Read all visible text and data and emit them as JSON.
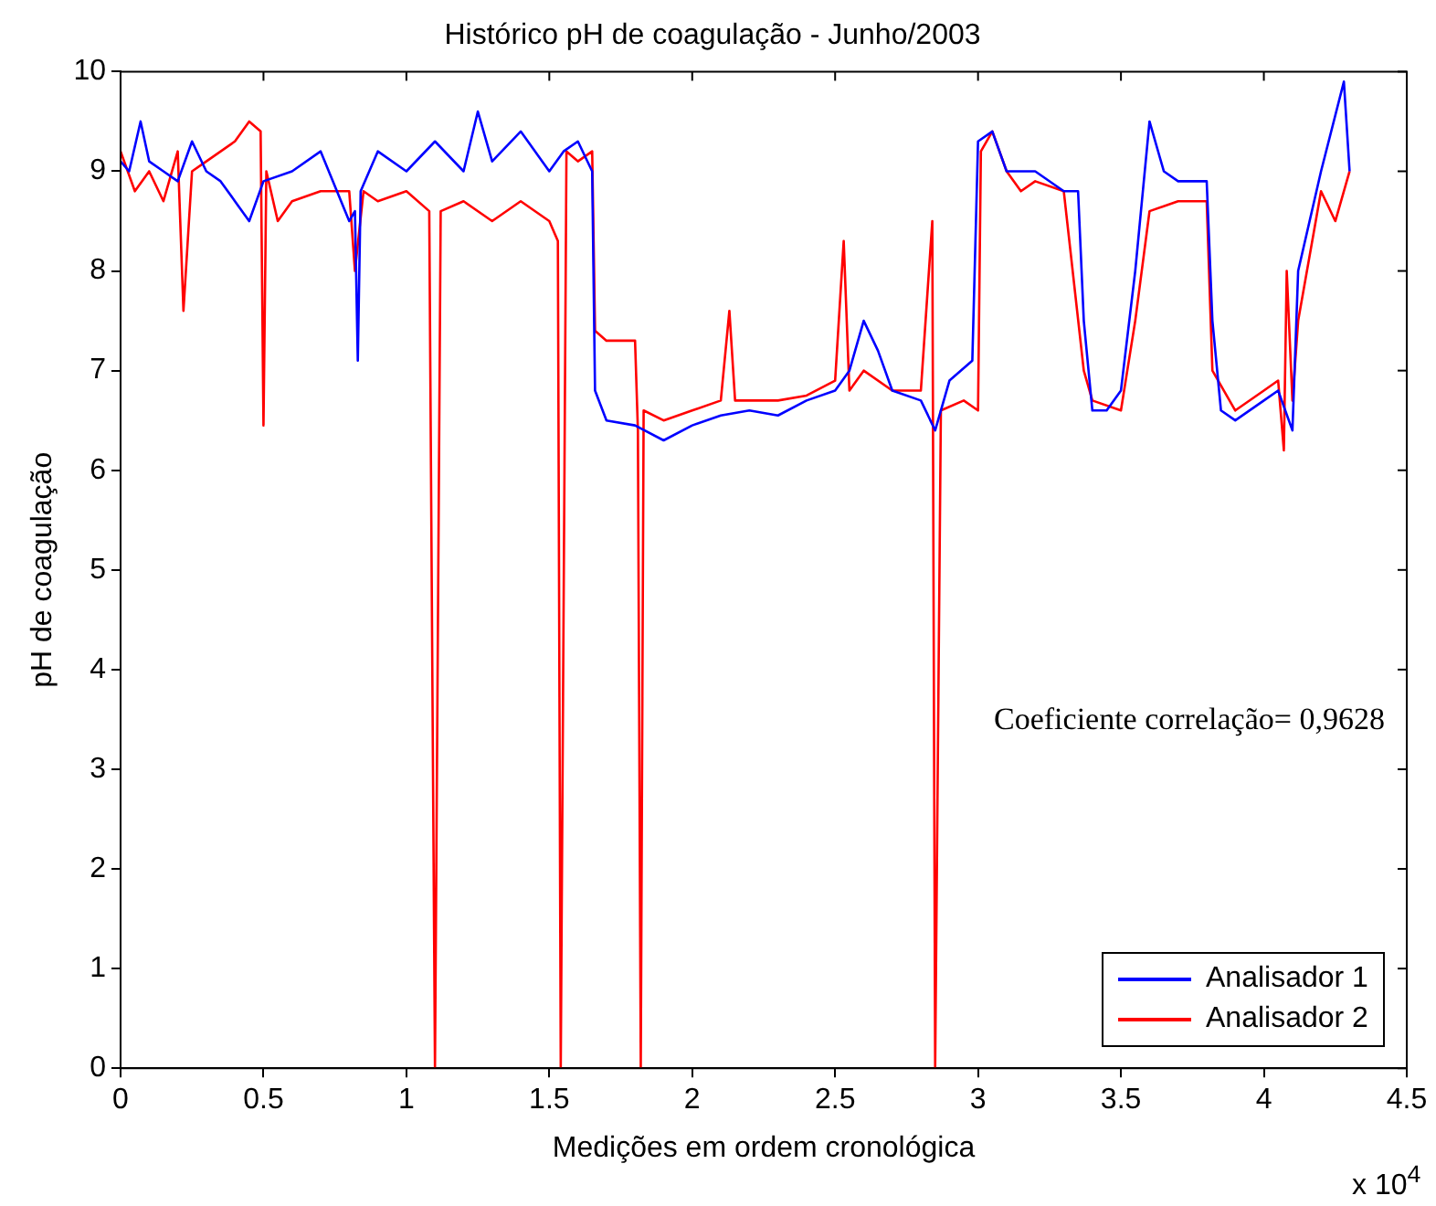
{
  "chart_data": {
    "type": "line",
    "title": "Histórico pH de coagulação - Junho/2003",
    "xlabel": "Medições em ordem cronológica",
    "ylabel": "pH de coagulação",
    "annotations": [
      "Coeficiente correlação= 0,9628",
      "x 10$^{4}$"
    ],
    "xlim": [
      0,
      4.5
    ],
    "xticks": [
      0,
      0.5,
      1,
      1.5,
      2,
      2.5,
      3,
      3.5,
      4,
      4.5
    ],
    "ylim": [
      0,
      10
    ],
    "yticks": [
      0,
      1,
      2,
      3,
      4,
      5,
      6,
      7,
      8,
      9,
      10
    ],
    "grid": false,
    "legend": "bottom right",
    "marker": "none",
    "line_style": "solid",
    "series": [
      {
        "name": "Analisador 1",
        "color": "#0000ff",
        "x": [
          0,
          0.03,
          0.07,
          0.1,
          0.15,
          0.2,
          0.25,
          0.3,
          0.35,
          0.4,
          0.45,
          0.5,
          0.6,
          0.7,
          0.8,
          0.82,
          0.83,
          0.84,
          0.9,
          1.0,
          1.1,
          1.2,
          1.25,
          1.3,
          1.4,
          1.5,
          1.55,
          1.6,
          1.65,
          1.66,
          1.7,
          1.8,
          1.9,
          2.0,
          2.1,
          2.2,
          2.3,
          2.4,
          2.5,
          2.55,
          2.6,
          2.65,
          2.7,
          2.8,
          2.85,
          2.9,
          2.98,
          3.0,
          3.05,
          3.1,
          3.2,
          3.3,
          3.35,
          3.37,
          3.4,
          3.45,
          3.5,
          3.55,
          3.6,
          3.65,
          3.7,
          3.8,
          3.82,
          3.85,
          3.9,
          4.0,
          4.05,
          4.1,
          4.12,
          4.2,
          4.28,
          4.3
        ],
        "values": [
          9.1,
          9.0,
          9.5,
          9.1,
          9.0,
          8.9,
          9.3,
          9.0,
          8.9,
          8.7,
          8.5,
          8.9,
          9.0,
          9.2,
          8.5,
          8.6,
          7.1,
          8.8,
          9.2,
          9.0,
          9.3,
          9.0,
          9.6,
          9.1,
          9.4,
          9.0,
          9.2,
          9.3,
          9.0,
          6.8,
          6.5,
          6.45,
          6.3,
          6.45,
          6.55,
          6.6,
          6.55,
          6.7,
          6.8,
          7.0,
          7.5,
          7.2,
          6.8,
          6.7,
          6.4,
          6.9,
          7.1,
          9.3,
          9.4,
          9.0,
          9.0,
          8.8,
          8.8,
          7.5,
          6.6,
          6.6,
          6.8,
          8.0,
          9.5,
          9.0,
          8.9,
          8.9,
          7.5,
          6.6,
          6.5,
          6.7,
          6.8,
          6.4,
          8.0,
          9.0,
          9.9,
          9.0
        ]
      },
      {
        "name": "Analisador 2",
        "color": "#ff0000",
        "x": [
          0,
          0.05,
          0.1,
          0.15,
          0.2,
          0.22,
          0.25,
          0.3,
          0.4,
          0.45,
          0.49,
          0.5,
          0.51,
          0.55,
          0.6,
          0.7,
          0.8,
          0.82,
          0.85,
          0.9,
          1.0,
          1.08,
          1.1,
          1.12,
          1.2,
          1.3,
          1.4,
          1.5,
          1.53,
          1.54,
          1.56,
          1.6,
          1.65,
          1.66,
          1.7,
          1.8,
          1.81,
          1.82,
          1.83,
          1.9,
          2.0,
          2.1,
          2.13,
          2.15,
          2.3,
          2.4,
          2.5,
          2.53,
          2.55,
          2.6,
          2.7,
          2.8,
          2.84,
          2.85,
          2.87,
          2.95,
          3.0,
          3.01,
          3.05,
          3.1,
          3.15,
          3.2,
          3.3,
          3.37,
          3.4,
          3.5,
          3.55,
          3.6,
          3.7,
          3.8,
          3.82,
          3.9,
          4.0,
          4.05,
          4.07,
          4.08,
          4.1,
          4.12,
          4.2,
          4.25,
          4.3
        ],
        "values": [
          9.2,
          8.8,
          9.0,
          8.7,
          9.2,
          7.6,
          9.0,
          9.1,
          9.3,
          9.5,
          9.4,
          6.45,
          9.0,
          8.5,
          8.7,
          8.8,
          8.8,
          8.0,
          8.8,
          8.7,
          8.8,
          8.6,
          0,
          8.6,
          8.7,
          8.5,
          8.7,
          8.5,
          8.3,
          0,
          9.2,
          9.1,
          9.2,
          7.4,
          7.3,
          7.3,
          6.4,
          0,
          6.6,
          6.5,
          6.6,
          6.7,
          7.6,
          6.7,
          6.7,
          6.75,
          6.9,
          8.3,
          6.8,
          7.0,
          6.8,
          6.8,
          8.5,
          0,
          6.6,
          6.7,
          6.6,
          9.2,
          9.4,
          9.0,
          8.8,
          8.9,
          8.8,
          7.0,
          6.7,
          6.6,
          7.5,
          8.6,
          8.7,
          8.7,
          7.0,
          6.6,
          6.8,
          6.9,
          6.2,
          8.0,
          6.7,
          7.5,
          8.8,
          8.5,
          9.0
        ]
      }
    ]
  }
}
